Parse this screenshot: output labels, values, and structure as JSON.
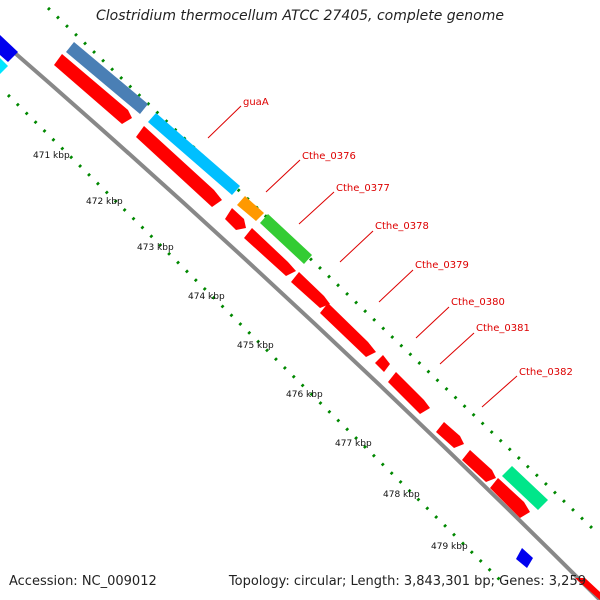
{
  "title": "Clostridium thermocellum ATCC 27405, complete genome",
  "footer": {
    "accession": "Accession: NC_009012",
    "stats": "Topology: circular; Length: 3,843,301 bp; Genes: 3,259"
  },
  "ticks": [
    "471 kbp",
    "472 kbp",
    "473 kbp",
    "474 kbp",
    "475 kbp",
    "476 kbp",
    "477 kbp",
    "478 kbp",
    "479 kbp"
  ],
  "gene_labels": [
    "guaA",
    "Cthe_0376",
    "Cthe_0377",
    "Cthe_0378",
    "Cthe_0379",
    "Cthe_0380",
    "Cthe_0381",
    "Cthe_0382"
  ],
  "colors": {
    "backbone": "#888888",
    "cds": "#ff0000",
    "cog_blue": "#00bfff",
    "cog_steel": "#4a7fb5",
    "cog_orange": "#ff9900",
    "cog_green": "#33cc33",
    "cog_teal": "#00e68a",
    "cog_navy": "#0000ee",
    "dots": "#008800",
    "label": "#dd0000"
  }
}
